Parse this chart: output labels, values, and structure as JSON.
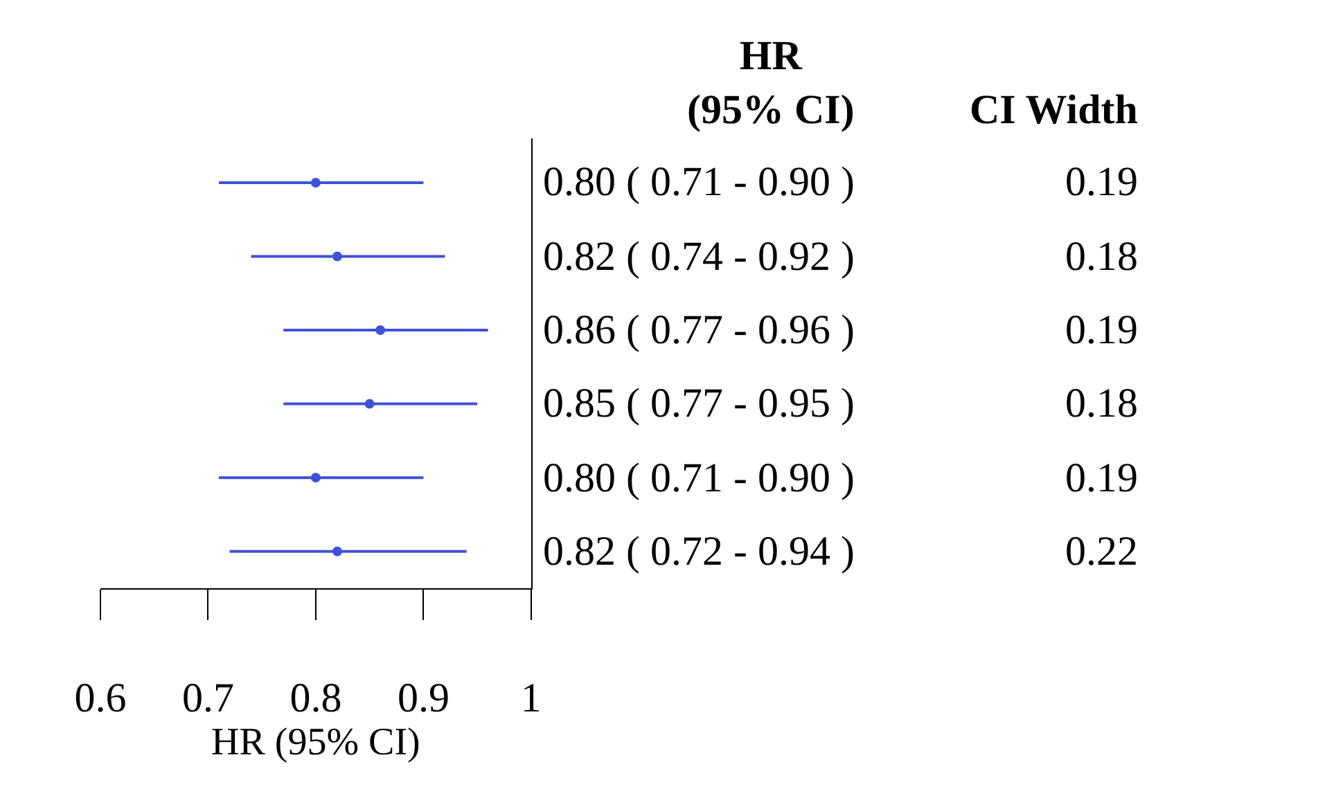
{
  "chart_data": {
    "type": "scatter",
    "orientation": "horizontal",
    "xlabel": "HR (95% CI)",
    "categories": [
      null,
      null,
      null,
      null,
      null,
      null
    ],
    "values": [
      0.8,
      0.82,
      0.86,
      0.85,
      0.8,
      0.82
    ],
    "errors": [
      [
        0.71,
        0.9
      ],
      [
        0.74,
        0.92
      ],
      [
        0.77,
        0.96
      ],
      [
        0.77,
        0.95
      ],
      [
        0.71,
        0.9
      ],
      [
        0.72,
        0.94
      ]
    ],
    "value_labels": [
      "0.80 ( 0.71 - 0.90 )",
      "0.82 ( 0.74 - 0.92 )",
      "0.86 ( 0.77 - 0.96 )",
      "0.85 ( 0.77 - 0.95 )",
      "0.80 ( 0.71 - 0.90 )",
      "0.82 ( 0.72 - 0.94 )"
    ],
    "color": "#3f51d8",
    "marker": "circle",
    "xlim": [
      0.6,
      1
    ],
    "xticks": [
      0.6,
      0.7,
      0.8,
      0.9,
      1
    ],
    "annotations": [
      "HR\n(95% CI)",
      "CI Width",
      "0.19",
      "0.18",
      "0.19",
      "0.18",
      "0.19",
      "0.22"
    ],
    "tick_labels": "x"
  }
}
